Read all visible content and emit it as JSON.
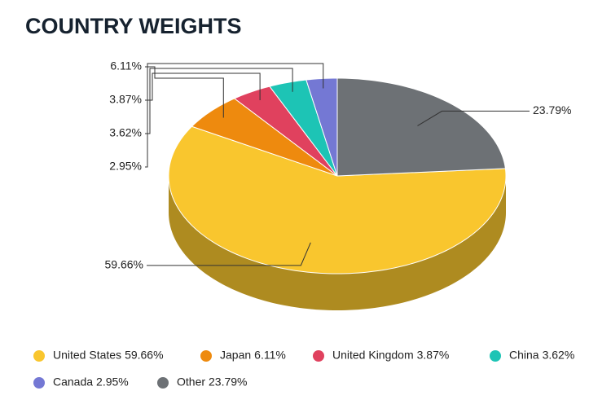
{
  "chart_data": {
    "type": "pie3d",
    "title": "COUNTRY WEIGHTS",
    "categories": [
      "United States",
      "Japan",
      "United Kingdom",
      "China",
      "Canada",
      "Other"
    ],
    "values": [
      59.66,
      6.11,
      3.87,
      3.62,
      2.95,
      23.79
    ],
    "value_labels": [
      "59.66%",
      "6.11%",
      "3.87%",
      "3.62%",
      "2.95%",
      "23.79%"
    ],
    "colors": [
      "#f9c62e",
      "#ee8a0e",
      "#e0415e",
      "#1dc4b5",
      "#7478d4",
      "#6d7175"
    ]
  }
}
